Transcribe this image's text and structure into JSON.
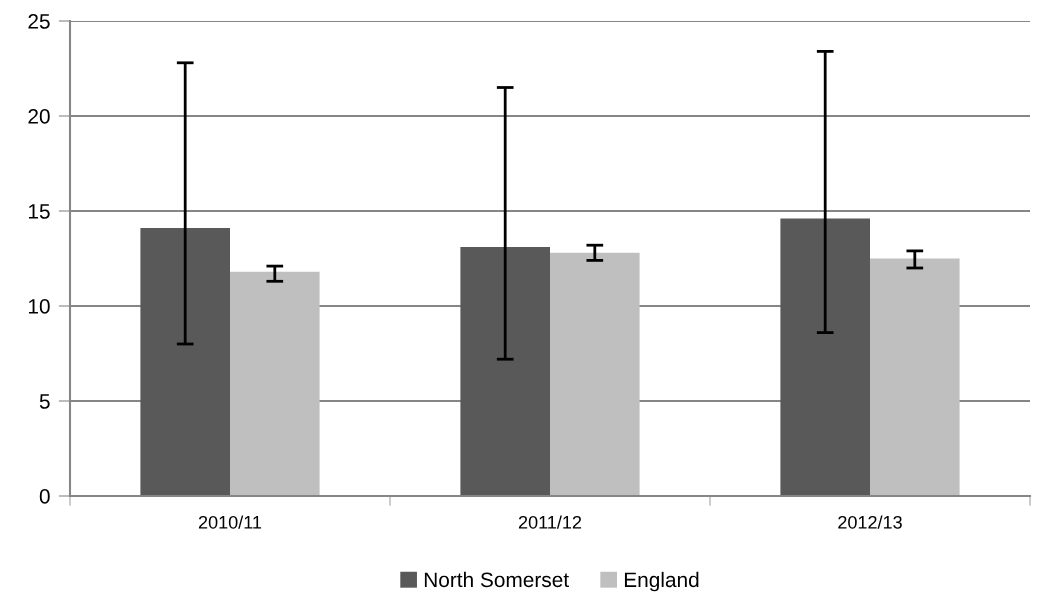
{
  "chart_data": {
    "type": "bar",
    "categories": [
      "2010/11",
      "2011/12",
      "2012/13"
    ],
    "series": [
      {
        "name": "North Somerset",
        "color": "#595959",
        "values": [
          14.1,
          13.1,
          14.6
        ],
        "errors": [
          [
            8.0,
            22.8
          ],
          [
            7.2,
            21.5
          ],
          [
            8.6,
            23.4
          ]
        ]
      },
      {
        "name": "England",
        "color": "#bfbfbf",
        "values": [
          11.8,
          12.8,
          12.5
        ],
        "errors": [
          [
            11.3,
            12.1
          ],
          [
            12.4,
            13.2
          ],
          [
            12.0,
            12.9
          ]
        ]
      }
    ],
    "ylim": [
      0,
      25
    ],
    "yticks": [
      0,
      5,
      10,
      15,
      20,
      25
    ],
    "grid": "y",
    "legend": "bottom"
  }
}
